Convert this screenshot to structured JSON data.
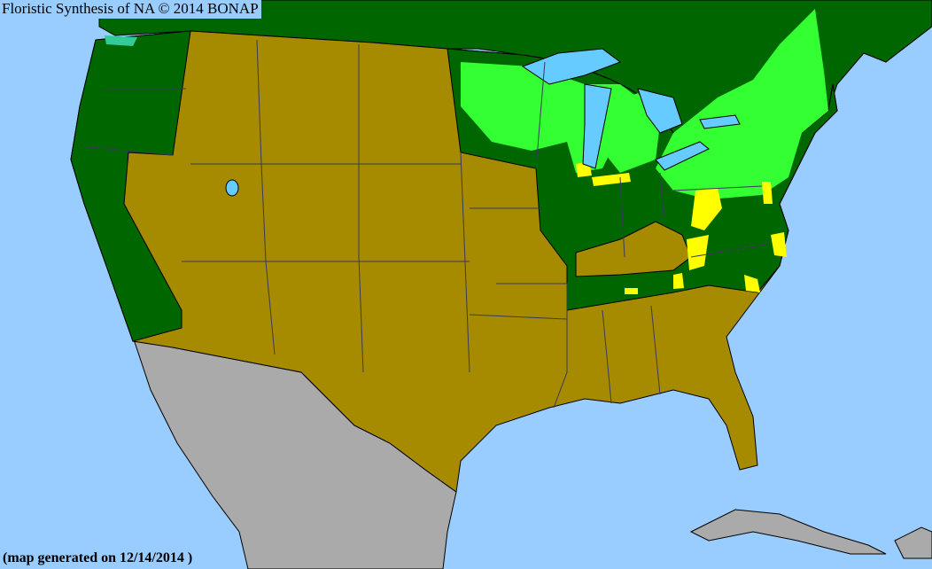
{
  "title": "Floristic Synthesis of NA © 2014 BONAP",
  "footer": "(map generated on 12/14/2014 )",
  "colors": {
    "ocean": "#99ccff",
    "lakes": "#66ccff",
    "canada": "#006600",
    "present_state": "#006600",
    "absent_state": "#a68a00",
    "county_present": "#33ff33",
    "county_rare": "#ffff00",
    "county_native_other": "#33cc99",
    "outside_region": "#aaaaaa",
    "borders": "#444444"
  }
}
